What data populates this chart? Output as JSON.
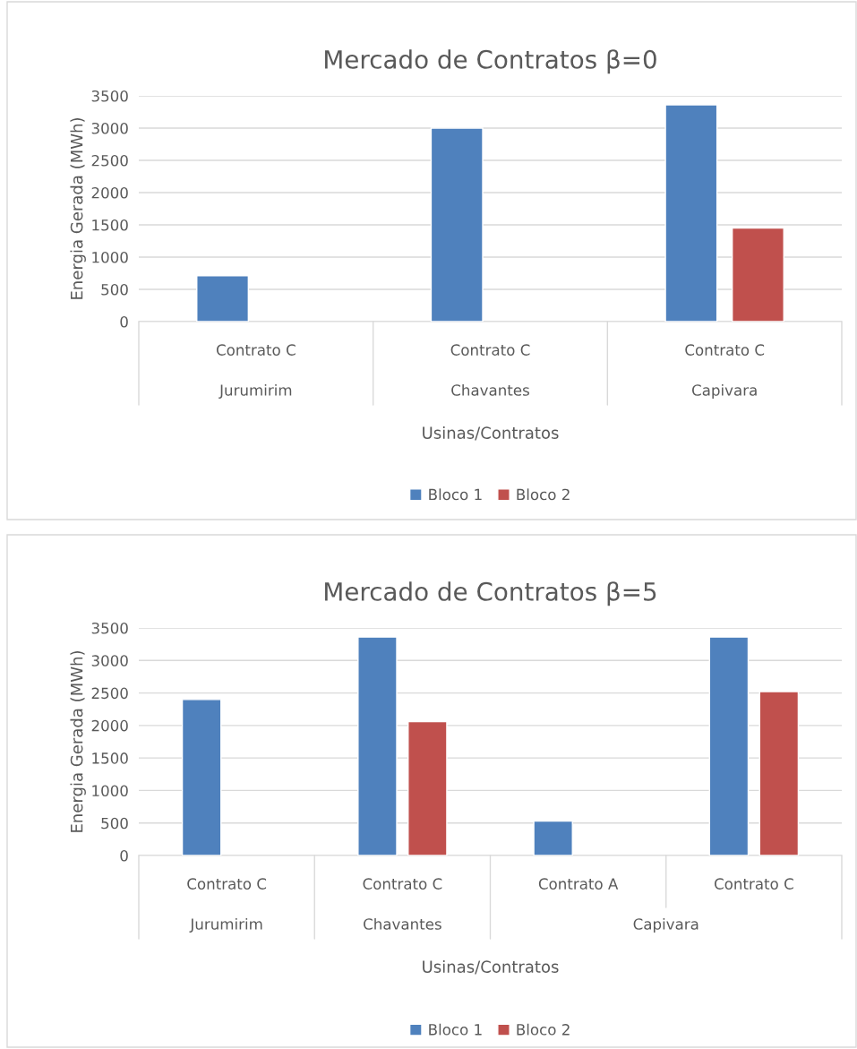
{
  "chart_data": [
    {
      "type": "bar",
      "title": "Mercado de Contratos β=0",
      "xlabel": "Usinas/Contratos",
      "ylabel": "Energia Gerada (MWh)",
      "categories": [
        "Contrato C",
        "Contrato C",
        "Contrato C"
      ],
      "series": [
        {
          "name": "Bloco 1",
          "color": "#4f81bd",
          "values": [
            710,
            3000,
            3360
          ]
        },
        {
          "name": "Bloco 2",
          "color": "#c0504d",
          "values": [
            null,
            null,
            1450
          ]
        }
      ],
      "annotations": [
        "Jurumirim",
        "Chavantes",
        "Capivara"
      ],
      "ylim": [
        0,
        3500
      ],
      "yticks": [
        0,
        500,
        1000,
        1500,
        2000,
        2500,
        3000,
        3500
      ],
      "grid": "y",
      "legend": "bottom"
    },
    {
      "type": "bar",
      "title": "Mercado de Contratos β=5",
      "xlabel": "Usinas/Contratos",
      "ylabel": "Energia Gerada (MWh)",
      "categories": [
        "Contrato C",
        "Contrato C",
        "Contrato A",
        "Contrato C"
      ],
      "series": [
        {
          "name": "Bloco 1",
          "color": "#4f81bd",
          "values": [
            2400,
            3360,
            530,
            3360
          ]
        },
        {
          "name": "Bloco 2",
          "color": "#c0504d",
          "values": [
            null,
            2060,
            null,
            2520
          ]
        }
      ],
      "annotations": [
        "Jurumirim",
        "Chavantes",
        "Capivara"
      ],
      "ylim": [
        0,
        3500
      ],
      "yticks": [
        0,
        500,
        1000,
        1500,
        2000,
        2500,
        3000,
        3500
      ],
      "grid": "y",
      "legend": "bottom"
    }
  ]
}
